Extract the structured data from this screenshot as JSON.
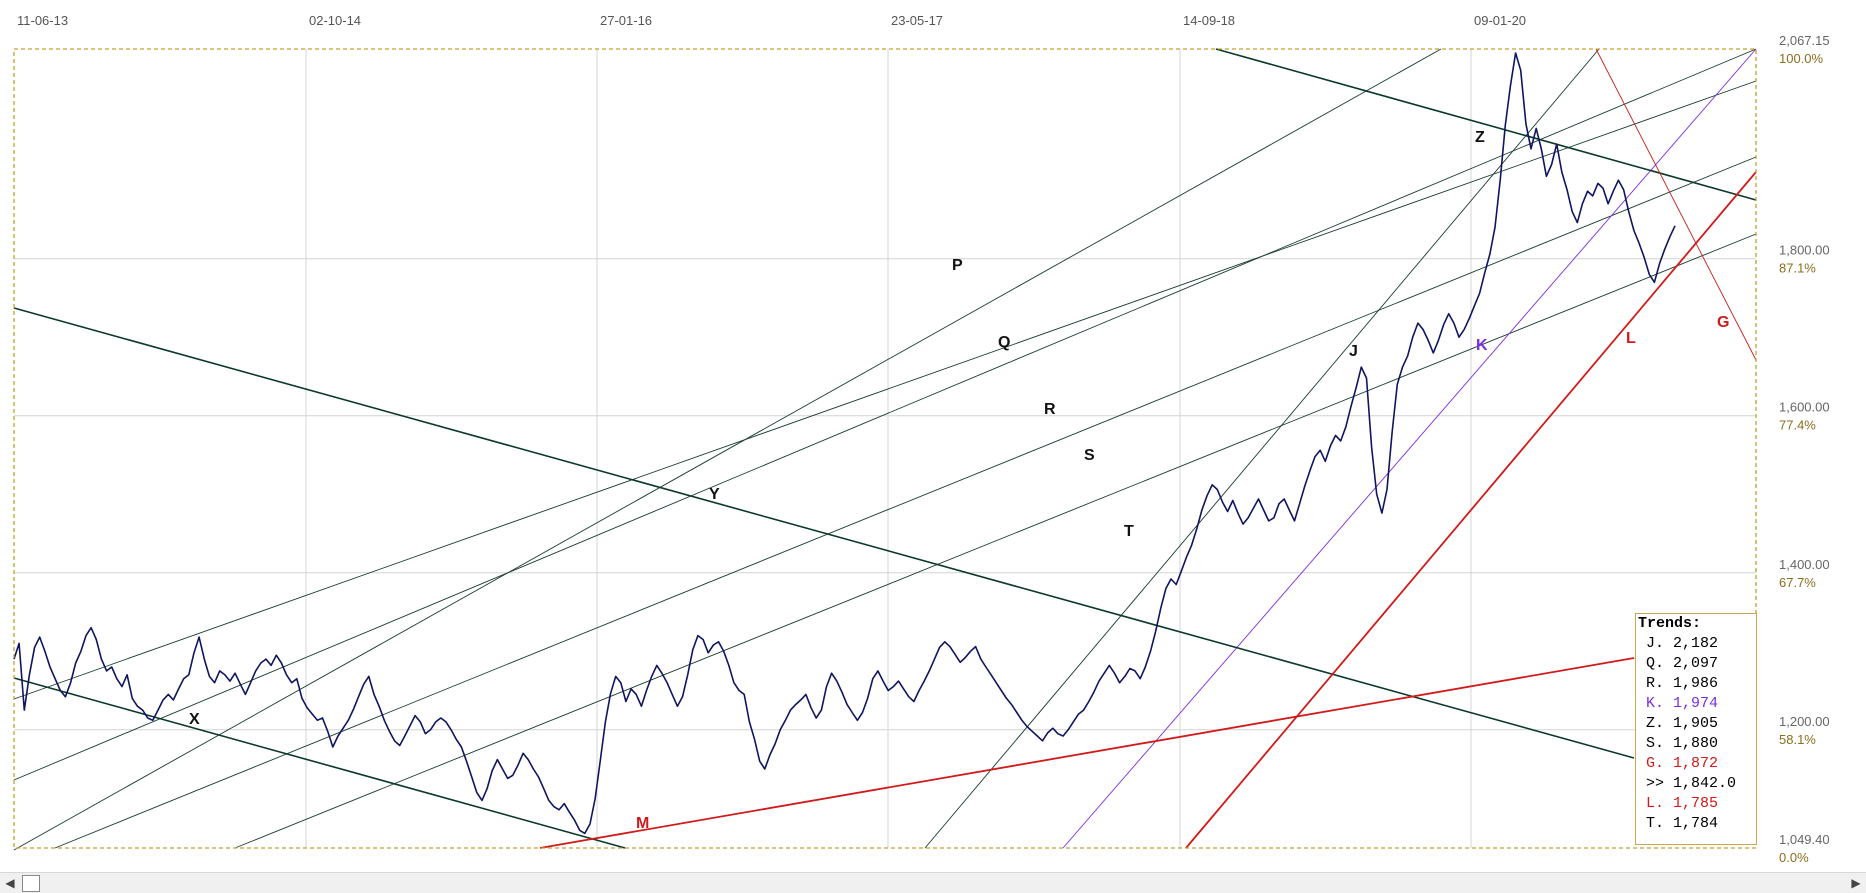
{
  "chart_data": {
    "type": "line",
    "x_ticks": [
      "11-06-13",
      "02-10-14",
      "27-01-16",
      "23-05-17",
      "14-09-18",
      "09-01-20"
    ],
    "y_ticks": [
      {
        "value": 2067.15,
        "label": "2,067.15",
        "pct": "100.0%"
      },
      {
        "value": 1800,
        "label": "1,800.00",
        "pct": "87.1%"
      },
      {
        "value": 1600,
        "label": "1,600.00",
        "pct": "77.4%"
      },
      {
        "value": 1400,
        "label": "1,400.00",
        "pct": "67.7%"
      },
      {
        "value": 1200,
        "label": "1,200.00",
        "pct": "58.1%"
      },
      {
        "value": 1049.4,
        "label": "1,049.40",
        "pct": "0.0%"
      }
    ],
    "ylim": [
      1049.4,
      2067.15
    ],
    "grid": true,
    "series": [
      {
        "color": "#101560",
        "values": [
          1290,
          1310,
          1225,
          1270,
          1305,
          1318,
          1300,
          1280,
          1265,
          1250,
          1242,
          1260,
          1285,
          1300,
          1320,
          1330,
          1315,
          1290,
          1275,
          1280,
          1265,
          1255,
          1270,
          1240,
          1230,
          1225,
          1215,
          1212,
          1225,
          1238,
          1245,
          1238,
          1252,
          1265,
          1270,
          1298,
          1318,
          1290,
          1268,
          1260,
          1275,
          1270,
          1262,
          1272,
          1258,
          1245,
          1260,
          1275,
          1285,
          1290,
          1282,
          1295,
          1285,
          1270,
          1260,
          1265,
          1240,
          1228,
          1220,
          1212,
          1215,
          1198,
          1178,
          1192,
          1202,
          1212,
          1226,
          1242,
          1258,
          1268,
          1245,
          1230,
          1212,
          1198,
          1186,
          1180,
          1192,
          1205,
          1218,
          1210,
          1195,
          1200,
          1210,
          1215,
          1210,
          1200,
          1188,
          1178,
          1160,
          1140,
          1120,
          1110,
          1125,
          1148,
          1162,
          1150,
          1138,
          1142,
          1155,
          1170,
          1162,
          1150,
          1140,
          1125,
          1110,
          1102,
          1098,
          1106,
          1095,
          1085,
          1072,
          1068,
          1080,
          1112,
          1160,
          1210,
          1246,
          1268,
          1260,
          1236,
          1252,
          1245,
          1230,
          1250,
          1268,
          1282,
          1272,
          1260,
          1245,
          1230,
          1242,
          1270,
          1302,
          1320,
          1315,
          1298,
          1308,
          1312,
          1300,
          1282,
          1260,
          1250,
          1245,
          1210,
          1188,
          1160,
          1150,
          1168,
          1182,
          1200,
          1212,
          1225,
          1232,
          1238,
          1245,
          1228,
          1215,
          1225,
          1255,
          1272,
          1262,
          1248,
          1232,
          1222,
          1212,
          1222,
          1240,
          1265,
          1275,
          1262,
          1250,
          1255,
          1262,
          1252,
          1242,
          1236,
          1250,
          1262,
          1275,
          1290,
          1305,
          1312,
          1306,
          1296,
          1286,
          1292,
          1300,
          1306,
          1290,
          1280,
          1270,
          1260,
          1250,
          1240,
          1232,
          1222,
          1212,
          1204,
          1198,
          1192,
          1186,
          1196,
          1202,
          1195,
          1192,
          1200,
          1210,
          1220,
          1225,
          1236,
          1248,
          1262,
          1272,
          1282,
          1272,
          1260,
          1268,
          1278,
          1275,
          1265,
          1280,
          1300,
          1325,
          1355,
          1380,
          1392,
          1385,
          1402,
          1420,
          1435,
          1456,
          1480,
          1498,
          1512,
          1506,
          1490,
          1478,
          1492,
          1476,
          1462,
          1470,
          1482,
          1494,
          1480,
          1466,
          1470,
          1488,
          1494,
          1480,
          1466,
          1488,
          1510,
          1530,
          1548,
          1556,
          1542,
          1562,
          1575,
          1568,
          1586,
          1612,
          1636,
          1662,
          1648,
          1560,
          1500,
          1476,
          1506,
          1580,
          1640,
          1662,
          1676,
          1700,
          1718,
          1710,
          1696,
          1680,
          1696,
          1716,
          1730,
          1718,
          1700,
          1710,
          1724,
          1740,
          1756,
          1782,
          1806,
          1840,
          1900,
          1970,
          2020,
          2062,
          2040,
          1972,
          1940,
          1966,
          1940,
          1905,
          1920,
          1946,
          1910,
          1888,
          1860,
          1846,
          1870,
          1886,
          1880,
          1896,
          1890,
          1870,
          1886,
          1900,
          1888,
          1860,
          1836,
          1820,
          1802,
          1780,
          1770,
          1794,
          1812,
          1828,
          1842
        ]
      }
    ],
    "trend_lines": [
      {
        "label": "P",
        "color": "#1a3c2e"
      },
      {
        "label": "Q",
        "color": "#1a3c2e"
      },
      {
        "label": "R",
        "color": "#1a3c2e"
      },
      {
        "label": "S",
        "color": "#1a3c2e"
      },
      {
        "label": "T",
        "color": "#1a3c2e"
      },
      {
        "label": "J",
        "color": "#1a3c2e"
      },
      {
        "label": "K",
        "color": "#7a2ee0"
      },
      {
        "label": "Z",
        "color": "#0c3a2a"
      },
      {
        "label": "Y",
        "color": "#0c3a2a"
      },
      {
        "label": "X",
        "color": "#0c3a2a"
      },
      {
        "label": "M",
        "color": "#d21a1a"
      },
      {
        "label": "L",
        "color": "#d21a1a"
      },
      {
        "label": "G",
        "color": "#c81e1e"
      }
    ]
  },
  "legend": {
    "title": "Trends:",
    "rows": [
      {
        "key": "J.",
        "value": "2,182",
        "color": "#000000"
      },
      {
        "key": "Q.",
        "value": "2,097",
        "color": "#000000"
      },
      {
        "key": "R.",
        "value": "1,986",
        "color": "#000000"
      },
      {
        "key": "K.",
        "value": "1,974",
        "color": "#7a2ee0"
      },
      {
        "key": "Z.",
        "value": "1,905",
        "color": "#000000"
      },
      {
        "key": "S.",
        "value": "1,880",
        "color": "#000000"
      },
      {
        "key": "G.",
        "value": "1,872",
        "color": "#d21a1a"
      },
      {
        "key": ">>",
        "value": "1,842.0",
        "color": "#000000"
      },
      {
        "key": "L.",
        "value": "1,785",
        "color": "#d21a1a"
      },
      {
        "key": "T.",
        "value": "1,784",
        "color": "#000000"
      }
    ]
  },
  "scrollbar": {
    "left_icon": "triangle-left-icon",
    "right_icon": "triangle-right-icon"
  }
}
